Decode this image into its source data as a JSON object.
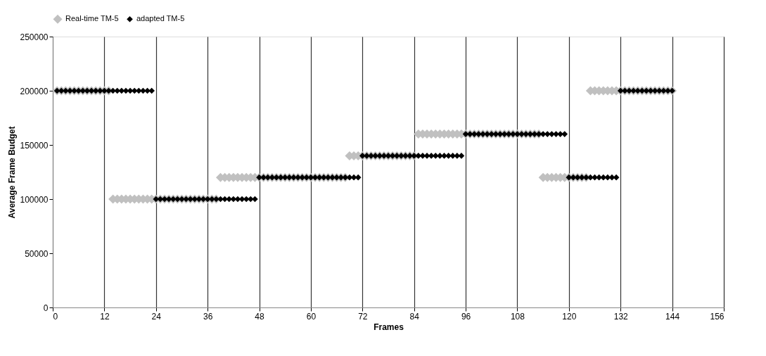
{
  "chart_data": {
    "type": "scatter",
    "xlabel": "Frames",
    "ylabel": "Average Frame Budget",
    "x": [
      1,
      2,
      3,
      4,
      5,
      6,
      7,
      8,
      9,
      10,
      11,
      12,
      13,
      14,
      15,
      16,
      17,
      18,
      19,
      20,
      21,
      22,
      23,
      24,
      25,
      26,
      27,
      28,
      29,
      30,
      31,
      32,
      33,
      34,
      35,
      36,
      37,
      38,
      39,
      40,
      41,
      42,
      43,
      44,
      45,
      46,
      47,
      48,
      49,
      50,
      51,
      52,
      53,
      54,
      55,
      56,
      57,
      58,
      59,
      60,
      61,
      62,
      63,
      64,
      65,
      66,
      67,
      68,
      69,
      70,
      71,
      72,
      73,
      74,
      75,
      76,
      77,
      78,
      79,
      80,
      81,
      82,
      83,
      84,
      85,
      86,
      87,
      88,
      89,
      90,
      91,
      92,
      93,
      94,
      95,
      96,
      97,
      98,
      99,
      100,
      101,
      102,
      103,
      104,
      105,
      106,
      107,
      108,
      109,
      110,
      111,
      112,
      113,
      114,
      115,
      116,
      117,
      118,
      119,
      120,
      121,
      122,
      123,
      124,
      125,
      126,
      127,
      128,
      129,
      130,
      131,
      132,
      133,
      134,
      135,
      136,
      137,
      138,
      139,
      140,
      141,
      142,
      143,
      144
    ],
    "series": [
      {
        "name": "Real-time TM-5",
        "color": "#c0c0c0",
        "values": [
          200000,
          200000,
          200000,
          200000,
          200000,
          200000,
          200000,
          200000,
          200000,
          200000,
          200000,
          200000,
          200000,
          100000,
          100000,
          100000,
          100000,
          100000,
          100000,
          100000,
          100000,
          100000,
          100000,
          100000,
          100000,
          100000,
          100000,
          100000,
          100000,
          100000,
          100000,
          100000,
          100000,
          100000,
          100000,
          100000,
          100000,
          100000,
          120000,
          120000,
          120000,
          120000,
          120000,
          120000,
          120000,
          120000,
          120000,
          120000,
          120000,
          120000,
          120000,
          120000,
          120000,
          120000,
          120000,
          120000,
          120000,
          120000,
          120000,
          120000,
          120000,
          120000,
          120000,
          120000,
          120000,
          120000,
          120000,
          120000,
          140000,
          140000,
          140000,
          140000,
          140000,
          140000,
          140000,
          140000,
          140000,
          140000,
          140000,
          140000,
          140000,
          140000,
          140000,
          140000,
          160000,
          160000,
          160000,
          160000,
          160000,
          160000,
          160000,
          160000,
          160000,
          160000,
          160000,
          160000,
          160000,
          160000,
          160000,
          160000,
          160000,
          160000,
          160000,
          160000,
          160000,
          160000,
          160000,
          160000,
          160000,
          160000,
          160000,
          160000,
          160000,
          120000,
          120000,
          120000,
          120000,
          120000,
          120000,
          120000,
          120000,
          120000,
          120000,
          120000,
          200000,
          200000,
          200000,
          200000,
          200000,
          200000,
          200000,
          200000,
          200000,
          200000,
          200000,
          200000,
          200000,
          200000,
          200000,
          200000,
          200000,
          200000,
          200000,
          200000
        ]
      },
      {
        "name": "adapted TM-5",
        "color": "#000000",
        "values": [
          200000,
          200000,
          200000,
          200000,
          200000,
          200000,
          200000,
          200000,
          200000,
          200000,
          200000,
          200000,
          200000,
          200000,
          200000,
          200000,
          200000,
          200000,
          200000,
          200000,
          200000,
          200000,
          200000,
          100000,
          100000,
          100000,
          100000,
          100000,
          100000,
          100000,
          100000,
          100000,
          100000,
          100000,
          100000,
          100000,
          100000,
          100000,
          100000,
          100000,
          100000,
          100000,
          100000,
          100000,
          100000,
          100000,
          100000,
          120000,
          120000,
          120000,
          120000,
          120000,
          120000,
          120000,
          120000,
          120000,
          120000,
          120000,
          120000,
          120000,
          120000,
          120000,
          120000,
          120000,
          120000,
          120000,
          120000,
          120000,
          120000,
          120000,
          120000,
          140000,
          140000,
          140000,
          140000,
          140000,
          140000,
          140000,
          140000,
          140000,
          140000,
          140000,
          140000,
          140000,
          140000,
          140000,
          140000,
          140000,
          140000,
          140000,
          140000,
          140000,
          140000,
          140000,
          140000,
          160000,
          160000,
          160000,
          160000,
          160000,
          160000,
          160000,
          160000,
          160000,
          160000,
          160000,
          160000,
          160000,
          160000,
          160000,
          160000,
          160000,
          160000,
          160000,
          160000,
          160000,
          160000,
          160000,
          160000,
          120000,
          120000,
          120000,
          120000,
          120000,
          120000,
          120000,
          120000,
          120000,
          120000,
          120000,
          120000,
          200000,
          200000,
          200000,
          200000,
          200000,
          200000,
          200000,
          200000,
          200000,
          200000,
          200000,
          200000,
          200000
        ]
      }
    ],
    "xlim": [
      0,
      156
    ],
    "xticks": [
      0,
      12,
      24,
      36,
      48,
      60,
      72,
      84,
      96,
      108,
      120,
      132,
      144,
      156
    ],
    "ylim": [
      0,
      250000
    ],
    "yticks": [
      0,
      50000,
      100000,
      150000,
      200000,
      250000
    ],
    "grid": "x",
    "legend": "top",
    "marker": "diamond"
  }
}
